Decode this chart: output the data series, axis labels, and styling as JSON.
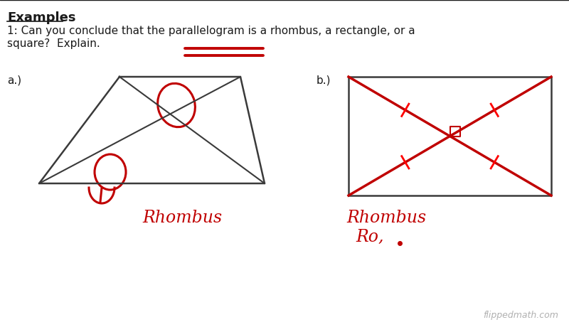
{
  "bg_color": "#ffffff",
  "title_text": "Examples",
  "question_line1": "1: Can you conclude that the parallelogram is a rhombus, a rectangle, or a",
  "question_line2": "square?  Explain.",
  "label_a": "a.)",
  "label_b": "b.)",
  "text_color": "#1a1a1a",
  "red_color": "#c00000",
  "shape_color": "#3a3a3a",
  "watermark": "flippedmath.com",
  "rhombus_answer_a": "Rhombus",
  "rhombus_answer_b": "Rhombus",
  "rect_answer": "Ro,"
}
